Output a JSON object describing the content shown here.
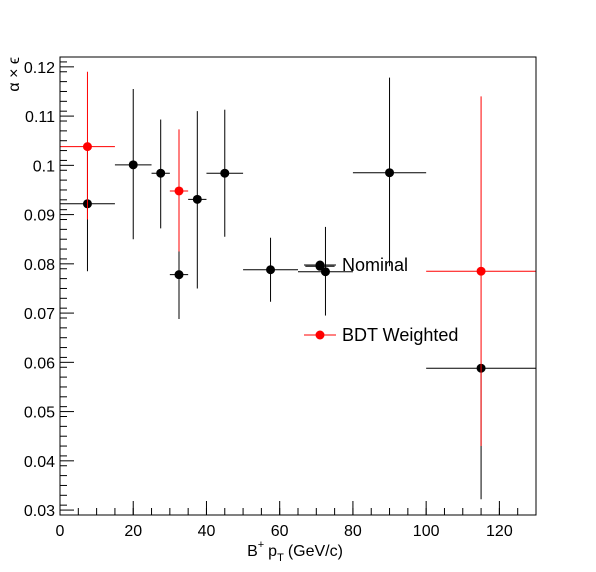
{
  "chart_data": {
    "type": "scatter",
    "title": "",
    "xlabel": {
      "base": "B",
      "sup": "+",
      "p": "p",
      "sub": "T",
      "unit": "(GeV/c)"
    },
    "ylabel": "α × ϵ",
    "xlim": [
      0,
      130
    ],
    "ylim": [
      0.029,
      0.122
    ],
    "x_ticks": [
      0,
      20,
      40,
      60,
      80,
      100,
      120
    ],
    "x_tick_labels": [
      "0",
      "20",
      "40",
      "60",
      "80",
      "100",
      "120"
    ],
    "y_ticks": [
      0.03,
      0.04,
      0.05,
      0.06,
      0.07,
      0.08,
      0.09,
      0.1,
      0.11,
      0.12
    ],
    "y_tick_labels": [
      "0.03",
      "0.04",
      "0.05",
      "0.06",
      "0.07",
      "0.08",
      "0.09",
      "0.1",
      "0.11",
      "0.12"
    ],
    "grid": false,
    "legend_position": "center-right",
    "series": [
      {
        "name": "Nominal",
        "color": "#000000",
        "points": [
          {
            "x": 7.5,
            "xerr": 7.5,
            "y": 0.0922,
            "ylo": 0.0785,
            "yhi": 0.1038
          },
          {
            "x": 20,
            "xerr": 5,
            "y": 0.1001,
            "ylo": 0.085,
            "yhi": 0.1155
          },
          {
            "x": 27.5,
            "xerr": 2.5,
            "y": 0.0984,
            "ylo": 0.0872,
            "yhi": 0.1093
          },
          {
            "x": 32.5,
            "xerr": 2.5,
            "y": 0.0778,
            "ylo": 0.0688,
            "yhi": 0.087
          },
          {
            "x": 37.5,
            "xerr": 2.5,
            "y": 0.0931,
            "ylo": 0.075,
            "yhi": 0.111
          },
          {
            "x": 45,
            "xerr": 5,
            "y": 0.0984,
            "ylo": 0.0855,
            "yhi": 0.1113
          },
          {
            "x": 57.5,
            "xerr": 7.5,
            "y": 0.0788,
            "ylo": 0.0723,
            "yhi": 0.0853
          },
          {
            "x": 71,
            "xerr": 4,
            "y": 0.0795,
            "ylo": 0.079,
            "yhi": 0.08
          },
          {
            "x": 72.5,
            "xerr": 7.5,
            "y": 0.0784,
            "ylo": 0.0695,
            "yhi": 0.0875
          },
          {
            "x": 90,
            "xerr": 10,
            "y": 0.0985,
            "ylo": 0.0795,
            "yhi": 0.1178
          },
          {
            "x": 115,
            "xerr": 15,
            "y": 0.0588,
            "ylo": 0.0322,
            "yhi": 0.059
          }
        ]
      },
      {
        "name": "BDT Weighted",
        "color": "#ff0000",
        "points": [
          {
            "x": 7.5,
            "xerr": 7.5,
            "y": 0.1038,
            "ylo": 0.089,
            "yhi": 0.119
          },
          {
            "x": 32.5,
            "xerr": 2.5,
            "y": 0.0948,
            "ylo": 0.0825,
            "yhi": 0.1073
          },
          {
            "x": 115,
            "xerr": 15,
            "y": 0.0785,
            "ylo": 0.043,
            "yhi": 0.114
          }
        ]
      }
    ]
  }
}
